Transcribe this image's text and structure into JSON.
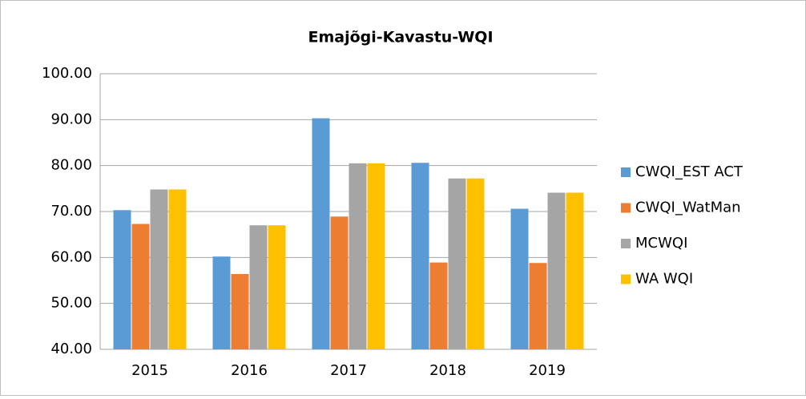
{
  "chart_data": {
    "type": "bar",
    "title": "Emajõgi-Kavastu-WQI",
    "categories": [
      "2015",
      "2016",
      "2017",
      "2018",
      "2019"
    ],
    "series": [
      {
        "name": "CWQI_EST ACT",
        "color": "#5b9bd5",
        "values": [
          70.3,
          60.2,
          90.3,
          80.6,
          70.6
        ]
      },
      {
        "name": "CWQI_WatMan",
        "color": "#ed7d31",
        "values": [
          67.3,
          56.4,
          68.9,
          58.9,
          58.8
        ]
      },
      {
        "name": "MCWQI",
        "color": "#a5a5a5",
        "values": [
          74.8,
          67.0,
          80.5,
          77.2,
          74.1
        ]
      },
      {
        "name": "WA WQI",
        "color": "#ffc000",
        "values": [
          74.8,
          67.0,
          80.5,
          77.2,
          74.1
        ]
      }
    ],
    "ylim": [
      40,
      100
    ],
    "yticks": [
      {
        "value": 40,
        "label": "40.00"
      },
      {
        "value": 50,
        "label": "50.00"
      },
      {
        "value": 60,
        "label": "60.00"
      },
      {
        "value": 70,
        "label": "70.00"
      },
      {
        "value": 80,
        "label": "80.00"
      },
      {
        "value": 90,
        "label": "90.00"
      },
      {
        "value": 100,
        "label": "100.00"
      }
    ],
    "grid": true,
    "legend": "right"
  }
}
